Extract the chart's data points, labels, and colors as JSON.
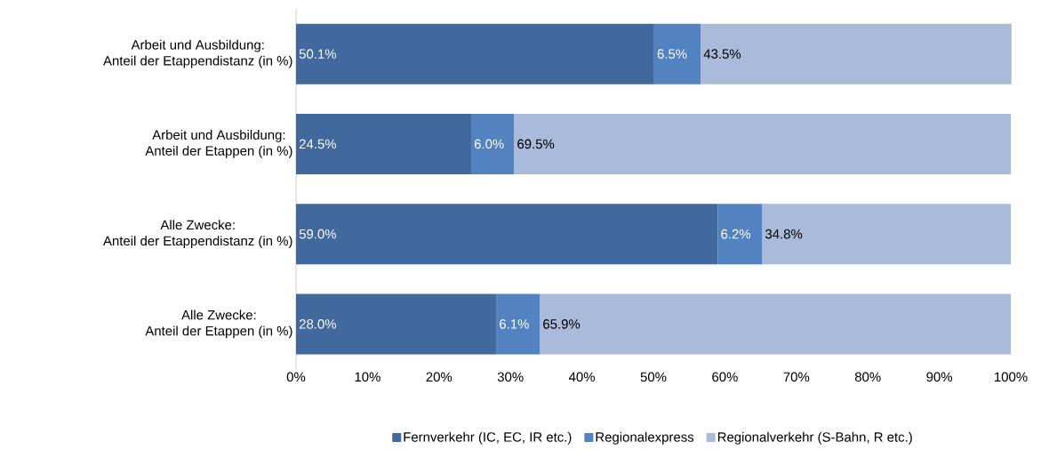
{
  "chart_data": {
    "type": "bar",
    "orientation": "horizontal",
    "stacked": true,
    "categories": [
      "Arbeit und Ausbildung:\nAnteil der Etappendistanz (in %)",
      "Arbeit und Ausbildung:\nAnteil der Etappen (in %)",
      "Alle Zwecke:\nAnteil der Etappendistanz (in %)",
      "Alle Zwecke:\nAnteil der Etappen (in %)"
    ],
    "series": [
      {
        "name": "Fernverkehr (IC, EC, IR etc.)",
        "color": "#41699d",
        "values": [
          50.1,
          24.5,
          59.0,
          28.0
        ],
        "value_labels": [
          "50.1%",
          "24.5%",
          "59.0%",
          "28.0%"
        ]
      },
      {
        "name": "Regionalexpress",
        "color": "#5282c0",
        "values": [
          6.5,
          6.0,
          6.2,
          6.1
        ],
        "value_labels": [
          "6.5%",
          "6.0%",
          "6.2%",
          "6.1%"
        ]
      },
      {
        "name": "Regionalverkehr (S-Bahn, R etc.)",
        "color": "#a9badb",
        "values": [
          43.5,
          69.5,
          34.8,
          65.9
        ],
        "value_labels": [
          "43.5%",
          "69.5%",
          "34.8%",
          "65.9%"
        ]
      }
    ],
    "xlim": [
      0,
      100
    ],
    "xticks": [
      {
        "value": 0,
        "label": "0%"
      },
      {
        "value": 10,
        "label": "10%"
      },
      {
        "value": 20,
        "label": "20%"
      },
      {
        "value": 30,
        "label": "30%"
      },
      {
        "value": 40,
        "label": "40%"
      },
      {
        "value": 50,
        "label": "50%"
      },
      {
        "value": 60,
        "label": "60%"
      },
      {
        "value": 70,
        "label": "70%"
      },
      {
        "value": 80,
        "label": "80%"
      },
      {
        "value": 90,
        "label": "90%"
      },
      {
        "value": 100,
        "label": "100%"
      }
    ],
    "legend": "bottom",
    "grid": false
  }
}
